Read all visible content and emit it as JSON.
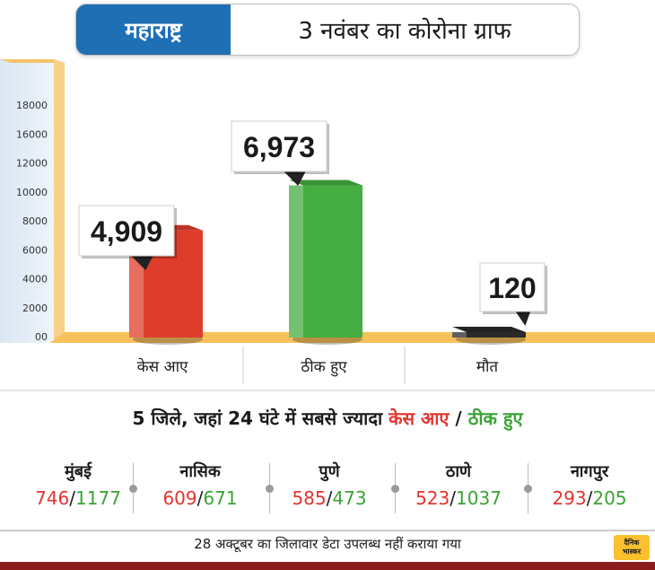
{
  "header": {
    "state": "महाराष्ट्र",
    "title": "3 नवंबर का कोरोना ग्राफ"
  },
  "chart_data": {
    "type": "bar",
    "categories": [
      "केस आए",
      "ठीक हुए",
      "मौत"
    ],
    "values": [
      4909,
      6973,
      120
    ],
    "value_labels": [
      "4,909",
      "6,973",
      "120"
    ],
    "y_ticks": [
      "00",
      "2000",
      "4000",
      "6000",
      "8000",
      "10000",
      "12000",
      "16000",
      "18000"
    ],
    "colors": [
      "#de3d2c",
      "#45ad41",
      "#2a2a2a"
    ],
    "grid": false,
    "legend": "none"
  },
  "districts_title": {
    "prefix": "5 जिले, जहां 24 घंटे में सबसे ज्यादा",
    "cases": "केस आए",
    "separator": "/",
    "recovered": "ठीक हुए"
  },
  "districts": [
    {
      "name": "मुंबई",
      "cases": "746",
      "recovered": "1177"
    },
    {
      "name": "नासिक",
      "cases": "609",
      "recovered": "671"
    },
    {
      "name": "पुणे",
      "cases": "585",
      "recovered": "473"
    },
    {
      "name": "ठाणे",
      "cases": "523",
      "recovered": "1037"
    },
    {
      "name": "नागपुर",
      "cases": "293",
      "recovered": "205"
    }
  ],
  "footer": "28 अक्टूबर का जिलावार डेटा उपलब्ध नहीं कराया गया",
  "logo": {
    "line1": "दैनिक",
    "line2": "भास्कर"
  },
  "colors": {
    "red": "#e3342f",
    "green": "#3aa335",
    "header_blue": "#1f6fb5",
    "bottom_bar": "#8b1c1c"
  }
}
